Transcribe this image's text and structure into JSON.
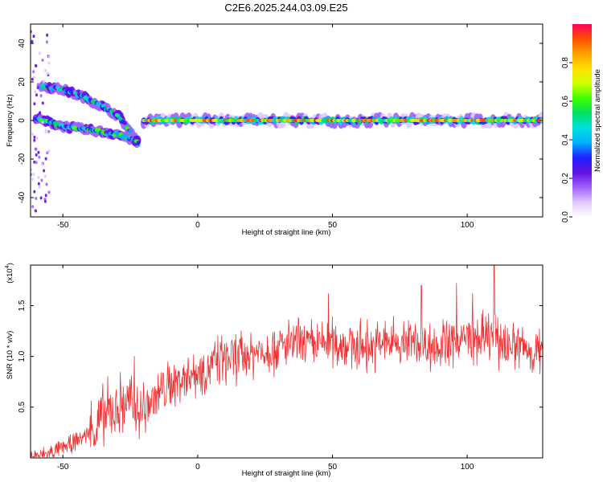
{
  "title": "C2E6.2025.244.03.09.E25",
  "chart_data": [
    {
      "type": "heatmap",
      "title": "C2E6.2025.244.03.09.E25",
      "xlabel": "Height of straight line (km)",
      "ylabel": "Frequency (Hz)",
      "xlim": [
        -62,
        128
      ],
      "ylim": [
        -50,
        50
      ],
      "x_ticks": [
        -50,
        0,
        50,
        100
      ],
      "y_ticks": [
        -40,
        -20,
        0,
        20,
        40
      ],
      "colorbar": {
        "label": "Normalized spectral amplitude",
        "range": [
          0,
          1
        ],
        "ticks": [
          "0.0",
          "0.2",
          "0.4",
          "0.6",
          "0.8"
        ],
        "tick_values": [
          0,
          0.2,
          0.4,
          0.6,
          0.8
        ],
        "stops": [
          "#ffffff",
          "#e0c8ff",
          "#a060ff",
          "#6010e0",
          "#2020ff",
          "#00b0ff",
          "#00e0e0",
          "#00e060",
          "#40ff00",
          "#d0ff00",
          "#ffe000",
          "#ffa000",
          "#ff5000",
          "#ff0060"
        ]
      },
      "traces": [
        {
          "name": "zero-frequency band",
          "x_range": [
            -20,
            128
          ],
          "frequency": 0,
          "amplitude": 0.85
        },
        {
          "name": "upper descending arc",
          "x": [
            -58,
            -50,
            -42,
            -35,
            -29,
            -25,
            -22
          ],
          "frequency": [
            18,
            16,
            12,
            7,
            2,
            -6,
            -12
          ],
          "amplitude": 0.45
        },
        {
          "name": "lower echo band",
          "x": [
            -60,
            -50,
            -40,
            -30,
            -22
          ],
          "frequency": [
            1,
            -3,
            -5,
            -7,
            -11
          ],
          "amplitude": 0.5
        },
        {
          "name": "near-field scatter",
          "x_range": [
            -62,
            -55
          ],
          "frequency_range": [
            -48,
            48
          ],
          "amplitude": 0.2
        }
      ]
    },
    {
      "type": "line",
      "xlabel": "Height of straight line (km)",
      "ylabel": "SNR (10 * v/v)",
      "multiplier": "(x10^4)",
      "multiplier_base": "(x10",
      "multiplier_exp": "4",
      "multiplier_close": ")",
      "xlim": [
        -62,
        128
      ],
      "ylim": [
        0,
        1.9
      ],
      "x_ticks": [
        -50,
        0,
        50,
        100
      ],
      "y_ticks": [
        "0.5",
        "1.0",
        "1.5"
      ],
      "y_tick_values": [
        0.5,
        1.0,
        1.5
      ],
      "series": [
        {
          "name": "SNR",
          "color": "#ee3333",
          "x": [
            -62,
            -58,
            -54,
            -50,
            -46,
            -42,
            -38,
            -34,
            -30,
            -26,
            -22,
            -19,
            -16,
            -12,
            -8,
            -4,
            0,
            4,
            8,
            12,
            16,
            20,
            24,
            28,
            32,
            36,
            40,
            44,
            48,
            52,
            56,
            60,
            64,
            68,
            72,
            76,
            80,
            84,
            88,
            92,
            96,
            100,
            104,
            108,
            112,
            116,
            120,
            124,
            128
          ],
          "y": [
            0.01,
            0.02,
            0.05,
            0.1,
            0.15,
            0.22,
            0.3,
            0.42,
            0.5,
            0.55,
            0.45,
            0.5,
            0.6,
            0.68,
            0.75,
            0.82,
            0.85,
            0.9,
            0.95,
            0.98,
            1.0,
            1.03,
            1.05,
            1.08,
            1.1,
            1.12,
            1.12,
            1.1,
            1.15,
            1.13,
            1.12,
            1.1,
            1.1,
            1.12,
            1.15,
            1.13,
            1.15,
            1.12,
            1.1,
            1.12,
            1.15,
            1.18,
            1.15,
            1.2,
            1.15,
            1.12,
            1.1,
            1.05,
            1.02
          ],
          "noise_amplitude": 0.22,
          "peaks": [
            {
              "x": 48.5,
              "y": 1.62
            },
            {
              "x": 83,
              "y": 1.7
            },
            {
              "x": 96,
              "y": 1.72
            },
            {
              "x": 110,
              "y": 1.9
            },
            {
              "x": 102,
              "y": 1.62
            },
            {
              "x": -23.5,
              "y": 1.0
            }
          ]
        }
      ]
    }
  ]
}
